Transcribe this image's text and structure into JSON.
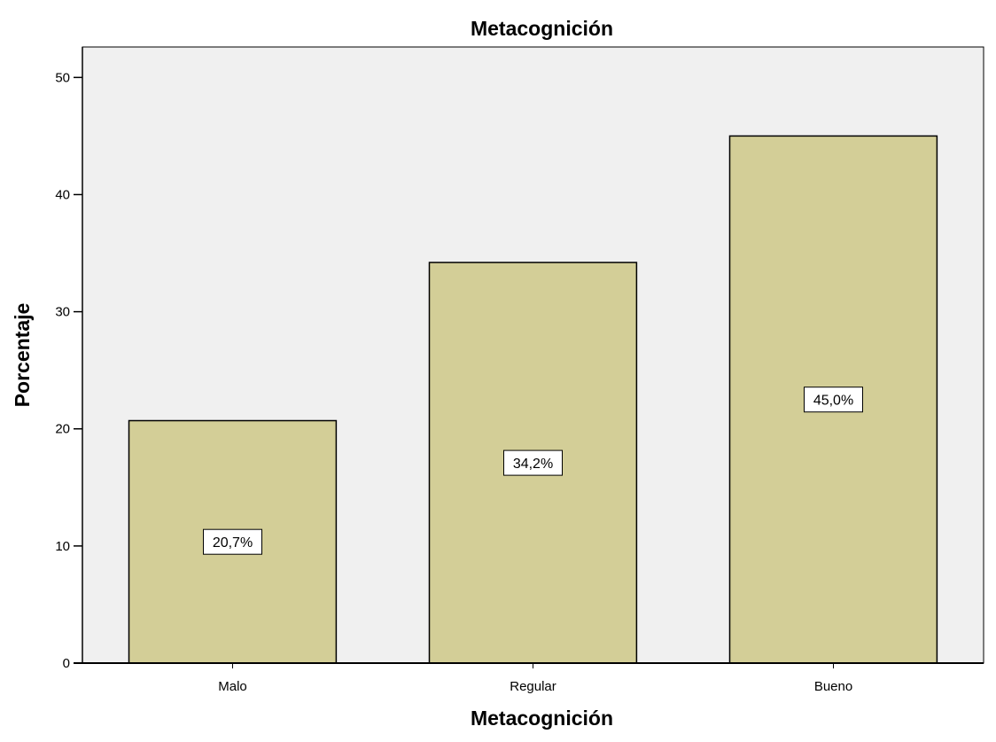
{
  "chart_data": {
    "type": "bar",
    "title": "Metacognición",
    "xlabel": "Metacognición",
    "ylabel": "Porcentaje",
    "categories": [
      "Malo",
      "Regular",
      "Bueno"
    ],
    "values": [
      20.7,
      34.2,
      45.0
    ],
    "data_labels": [
      "20,7%",
      "34,2%",
      "45,0%"
    ],
    "ylim": [
      0,
      52.6
    ],
    "yticks": [
      0,
      10,
      20,
      30,
      40,
      50
    ],
    "ytick_labels": [
      "0",
      "10",
      "20",
      "30",
      "40",
      "50"
    ],
    "grid": false,
    "colors": {
      "bar_fill": "#d3ce97",
      "bar_stroke": "#000000",
      "plot_background": "#f0f0f0",
      "axis": "#000000",
      "label_box_fill": "#ffffff"
    }
  }
}
